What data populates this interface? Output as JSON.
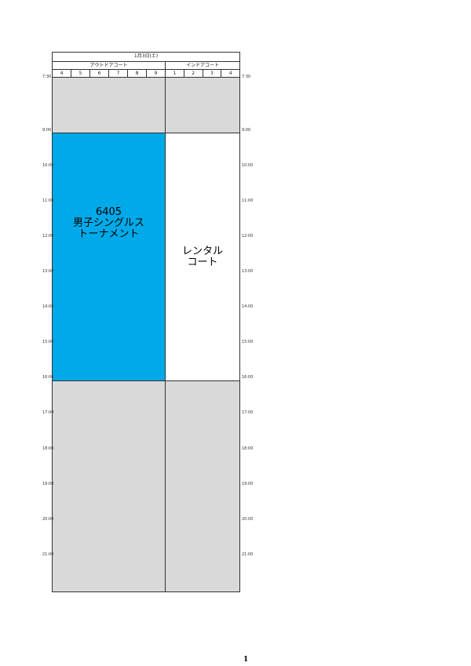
{
  "header": {
    "date": "1月3日(土)",
    "outdoor": "アウトドアコート",
    "indoor": "インドアコート",
    "outdoor_courts": [
      "4",
      "5",
      "6",
      "7",
      "8",
      "9"
    ],
    "indoor_courts": [
      "1",
      "2",
      "3",
      "4"
    ]
  },
  "times": [
    "7:30",
    "9:00",
    "10:00",
    "11:00",
    "12:00",
    "13:00",
    "14:00",
    "15:00",
    "16:00",
    "17:00",
    "18:00",
    "19:00",
    "20:00",
    "21:00"
  ],
  "events": [
    {
      "line1": "6405",
      "line2": "男子シングルス",
      "line3": "トーナメント",
      "color": "#00a9e8"
    },
    {
      "line1": "レンタル",
      "line2": "コート",
      "color": "#ffffff"
    }
  ],
  "page_number": "1"
}
